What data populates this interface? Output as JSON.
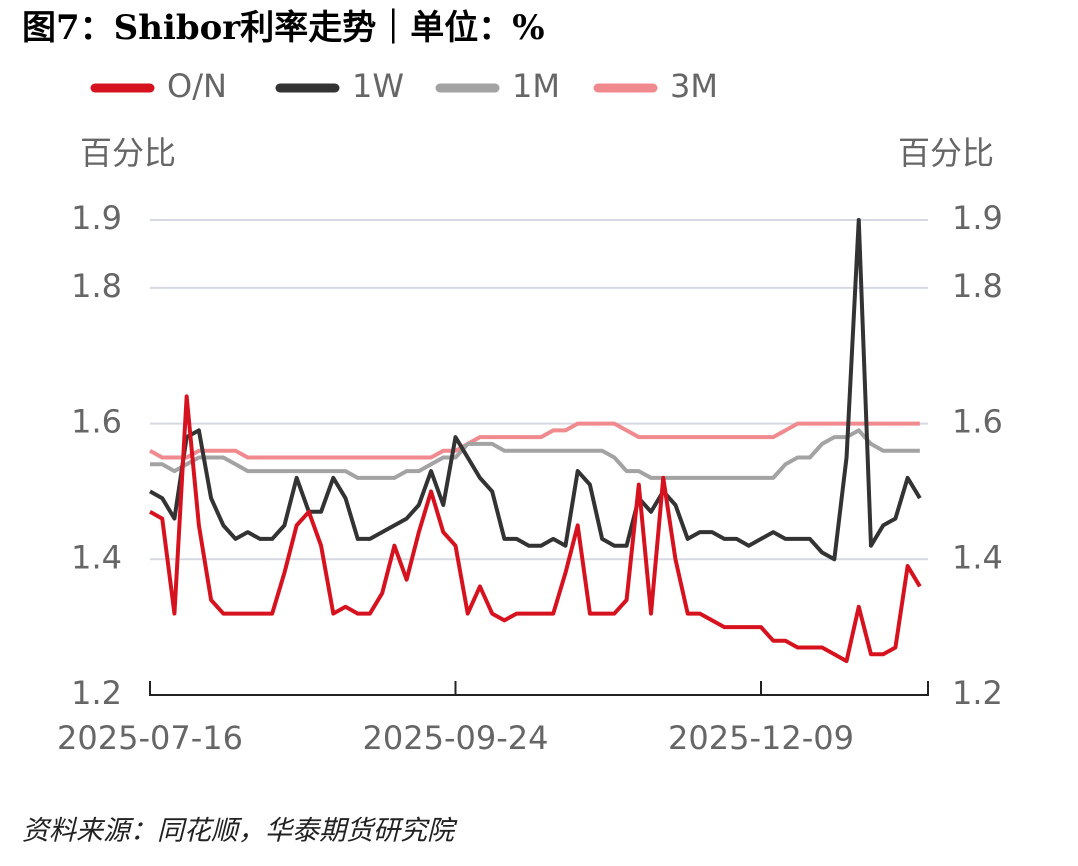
{
  "chart_data": {
    "type": "line",
    "title": "图7：Shibor利率走势｜单位：%",
    "y_label": "百分比",
    "y2_label": "百分比",
    "source": "资料来源：同花顺，华泰期货研究院",
    "categories": [
      "2025-07-16",
      null,
      null,
      null,
      null,
      null,
      null,
      null,
      null,
      null,
      null,
      null,
      null,
      null,
      null,
      null,
      null,
      null,
      null,
      null,
      null,
      null,
      null,
      null,
      null,
      "2025-09-24",
      null,
      null,
      null,
      null,
      null,
      null,
      null,
      null,
      null,
      null,
      null,
      null,
      null,
      null,
      null,
      null,
      null,
      null,
      null,
      null,
      null,
      null,
      null,
      null,
      "2025-12-09",
      null,
      null,
      null,
      null,
      null,
      null,
      null,
      null,
      null,
      null,
      null,
      null,
      null
    ],
    "ylim": [
      1.2,
      1.9
    ],
    "yticks": [
      1.2,
      1.4,
      1.6,
      1.8,
      1.9
    ],
    "y2lim": [
      1.2,
      1.9
    ],
    "y2ticks": [
      1.2,
      1.4,
      1.6,
      1.8,
      1.9
    ],
    "grid": true,
    "legend": "top",
    "series": [
      {
        "name": "O/N",
        "color": "#d7121f",
        "values": [
          1.47,
          1.46,
          1.32,
          1.64,
          1.45,
          1.34,
          1.32,
          1.32,
          1.32,
          1.32,
          1.32,
          1.38,
          1.45,
          1.47,
          1.42,
          1.32,
          1.33,
          1.32,
          1.32,
          1.35,
          1.42,
          1.37,
          1.44,
          1.5,
          1.44,
          1.42,
          1.32,
          1.36,
          1.32,
          1.31,
          1.32,
          1.32,
          1.32,
          1.32,
          1.38,
          1.45,
          1.32,
          1.32,
          1.32,
          1.34,
          1.51,
          1.32,
          1.52,
          1.4,
          1.32,
          1.32,
          1.31,
          1.3,
          1.3,
          1.3,
          1.3,
          1.28,
          1.28,
          1.27,
          1.27,
          1.27,
          1.26,
          1.25,
          1.33,
          1.26,
          1.26,
          1.27,
          1.39,
          1.36
        ]
      },
      {
        "name": "1W",
        "color": "#333333",
        "values": [
          1.5,
          1.49,
          1.46,
          1.58,
          1.59,
          1.49,
          1.45,
          1.43,
          1.44,
          1.43,
          1.43,
          1.45,
          1.52,
          1.47,
          1.47,
          1.52,
          1.49,
          1.43,
          1.43,
          1.44,
          1.45,
          1.46,
          1.48,
          1.53,
          1.48,
          1.58,
          1.55,
          1.52,
          1.5,
          1.43,
          1.43,
          1.42,
          1.42,
          1.43,
          1.42,
          1.53,
          1.51,
          1.43,
          1.42,
          1.42,
          1.49,
          1.47,
          1.5,
          1.48,
          1.43,
          1.44,
          1.44,
          1.43,
          1.43,
          1.42,
          1.43,
          1.44,
          1.43,
          1.43,
          1.43,
          1.41,
          1.4,
          1.55,
          1.9,
          1.42,
          1.45,
          1.46,
          1.52,
          1.49
        ]
      },
      {
        "name": "1M",
        "color": "#a3a3a3",
        "values": [
          1.54,
          1.54,
          1.53,
          1.54,
          1.55,
          1.55,
          1.55,
          1.54,
          1.53,
          1.53,
          1.53,
          1.53,
          1.53,
          1.53,
          1.53,
          1.53,
          1.53,
          1.52,
          1.52,
          1.52,
          1.52,
          1.53,
          1.53,
          1.54,
          1.55,
          1.55,
          1.57,
          1.57,
          1.57,
          1.56,
          1.56,
          1.56,
          1.56,
          1.56,
          1.56,
          1.56,
          1.56,
          1.56,
          1.55,
          1.53,
          1.53,
          1.52,
          1.52,
          1.52,
          1.52,
          1.52,
          1.52,
          1.52,
          1.52,
          1.52,
          1.52,
          1.52,
          1.54,
          1.55,
          1.55,
          1.57,
          1.58,
          1.58,
          1.59,
          1.57,
          1.56,
          1.56,
          1.56,
          1.56
        ]
      },
      {
        "name": "3M",
        "color": "#f08a8f",
        "values": [
          1.56,
          1.55,
          1.55,
          1.55,
          1.56,
          1.56,
          1.56,
          1.56,
          1.55,
          1.55,
          1.55,
          1.55,
          1.55,
          1.55,
          1.55,
          1.55,
          1.55,
          1.55,
          1.55,
          1.55,
          1.55,
          1.55,
          1.55,
          1.55,
          1.56,
          1.56,
          1.57,
          1.58,
          1.58,
          1.58,
          1.58,
          1.58,
          1.58,
          1.59,
          1.59,
          1.6,
          1.6,
          1.6,
          1.6,
          1.59,
          1.58,
          1.58,
          1.58,
          1.58,
          1.58,
          1.58,
          1.58,
          1.58,
          1.58,
          1.58,
          1.58,
          1.58,
          1.59,
          1.6,
          1.6,
          1.6,
          1.6,
          1.6,
          1.6,
          1.6,
          1.6,
          1.6,
          1.6,
          1.6
        ]
      }
    ]
  }
}
